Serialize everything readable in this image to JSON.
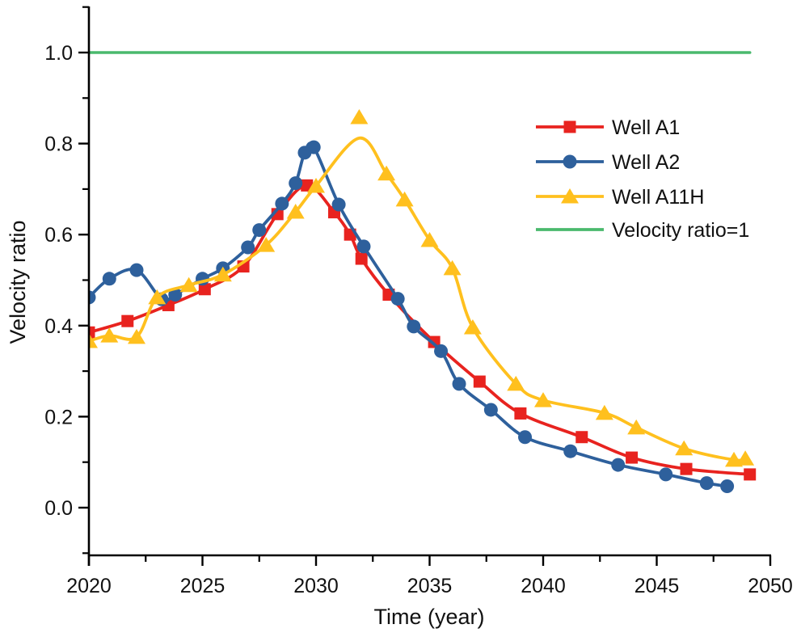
{
  "figure": {
    "background": "#ffffff",
    "axis_color": "#000000",
    "text_color": "#111111"
  },
  "axes": {
    "x": {
      "label": "Time (year)",
      "min": 2020,
      "max": 2050,
      "major_ticks": [
        2020,
        2025,
        2030,
        2035,
        2040,
        2045,
        2050
      ],
      "minor_ticks": [
        2022.5,
        2027.5,
        2032.5,
        2037.5,
        2042.5,
        2047.5
      ],
      "tick_labels": [
        "2020",
        "2025",
        "2030",
        "2035",
        "2040",
        "2045",
        "2050"
      ]
    },
    "y": {
      "label": "Velocity ratio",
      "min": -0.105,
      "max": 1.105,
      "major_ticks": [
        0.0,
        0.2,
        0.4,
        0.6,
        0.8,
        1.0
      ],
      "minor_ticks": [
        -0.1,
        0.1,
        0.3,
        0.5,
        0.7,
        0.9,
        1.1
      ],
      "tick_labels": [
        "0.0",
        "0.2",
        "0.4",
        "0.6",
        "0.8",
        "1.0"
      ]
    }
  },
  "legend": {
    "position": "upper-right-inside",
    "items": [
      {
        "label": "Well A1",
        "color": "#e8231f",
        "marker": "square"
      },
      {
        "label": "Well A2",
        "color": "#2e609c",
        "marker": "circle"
      },
      {
        "label": "Well A11H",
        "color": "#ffc01e",
        "marker": "triangle"
      },
      {
        "label": "Velocity ratio=1",
        "color": "#4ab96d",
        "marker": "none"
      }
    ]
  },
  "chart_data": {
    "type": "line",
    "title": "",
    "xlabel": "Time (year)",
    "ylabel": "Velocity ratio",
    "xlim": [
      2020,
      2050
    ],
    "ylim": [
      -0.105,
      1.105
    ],
    "grid": false,
    "series": [
      {
        "name": "Well A1",
        "color": "#e8231f",
        "marker": "square",
        "points": [
          [
            2020.0,
            0.385
          ],
          [
            2021.7,
            0.41
          ],
          [
            2023.5,
            0.445
          ],
          [
            2025.1,
            0.48
          ],
          [
            2026.8,
            0.53
          ],
          [
            2028.3,
            0.645
          ],
          [
            2029.6,
            0.708
          ],
          [
            2030.8,
            0.649
          ],
          [
            2031.5,
            0.6
          ],
          [
            2032.0,
            0.547
          ],
          [
            2033.2,
            0.468
          ],
          [
            2035.2,
            0.364
          ],
          [
            2037.2,
            0.277
          ],
          [
            2039.0,
            0.207
          ],
          [
            2041.7,
            0.155
          ],
          [
            2043.9,
            0.11
          ],
          [
            2046.3,
            0.085
          ],
          [
            2049.1,
            0.073
          ]
        ]
      },
      {
        "name": "Well A2",
        "color": "#2e609c",
        "marker": "circle",
        "points": [
          [
            2020.0,
            0.462
          ],
          [
            2020.9,
            0.503
          ],
          [
            2022.1,
            0.522
          ],
          [
            2023.2,
            0.458
          ],
          [
            2023.8,
            0.468
          ],
          [
            2025.0,
            0.503
          ],
          [
            2025.9,
            0.526
          ],
          [
            2027.0,
            0.572
          ],
          [
            2027.5,
            0.61
          ],
          [
            2028.5,
            0.668
          ],
          [
            2029.1,
            0.713
          ],
          [
            2029.5,
            0.78
          ],
          [
            2029.9,
            0.792
          ],
          [
            2031.0,
            0.666
          ],
          [
            2032.1,
            0.574
          ],
          [
            2033.6,
            0.459
          ],
          [
            2034.3,
            0.398
          ],
          [
            2035.5,
            0.344
          ],
          [
            2036.3,
            0.272
          ],
          [
            2037.7,
            0.215
          ],
          [
            2039.2,
            0.155
          ],
          [
            2041.2,
            0.124
          ],
          [
            2043.3,
            0.094
          ],
          [
            2045.4,
            0.073
          ],
          [
            2047.2,
            0.054
          ],
          [
            2048.1,
            0.047
          ]
        ]
      },
      {
        "name": "Well A11H",
        "color": "#ffc01e",
        "marker": "triangle",
        "points": [
          [
            2020.0,
            0.366
          ],
          [
            2020.9,
            0.378
          ],
          [
            2022.1,
            0.375
          ],
          [
            2023.0,
            0.462
          ],
          [
            2024.4,
            0.489
          ],
          [
            2025.9,
            0.512
          ],
          [
            2027.8,
            0.577
          ],
          [
            2029.1,
            0.65
          ],
          [
            2030.0,
            0.707
          ],
          [
            2031.9,
            0.858
          ],
          [
            2033.1,
            0.734
          ],
          [
            2033.9,
            0.677
          ],
          [
            2035.0,
            0.588
          ],
          [
            2036.0,
            0.526
          ],
          [
            2036.9,
            0.396
          ],
          [
            2038.8,
            0.272
          ],
          [
            2040.0,
            0.236
          ],
          [
            2042.7,
            0.208
          ],
          [
            2044.1,
            0.176
          ],
          [
            2046.2,
            0.13
          ],
          [
            2048.4,
            0.105
          ],
          [
            2048.9,
            0.108
          ]
        ],
        "line_points": [
          [
            2020.0,
            0.366
          ],
          [
            2020.9,
            0.378
          ],
          [
            2022.1,
            0.375
          ],
          [
            2023.0,
            0.462
          ],
          [
            2024.4,
            0.489
          ],
          [
            2025.9,
            0.512
          ],
          [
            2027.8,
            0.577
          ],
          [
            2029.1,
            0.65
          ],
          [
            2030.0,
            0.707
          ],
          [
            2031.9,
            0.812
          ],
          [
            2033.1,
            0.734
          ],
          [
            2033.9,
            0.677
          ],
          [
            2035.0,
            0.588
          ],
          [
            2036.0,
            0.526
          ],
          [
            2036.9,
            0.396
          ],
          [
            2038.8,
            0.272
          ],
          [
            2040.0,
            0.236
          ],
          [
            2042.7,
            0.208
          ],
          [
            2044.1,
            0.176
          ],
          [
            2046.2,
            0.13
          ],
          [
            2048.4,
            0.105
          ],
          [
            2048.9,
            0.108
          ]
        ]
      },
      {
        "name": "Velocity ratio=1",
        "color": "#4ab96d",
        "marker": "none",
        "points": [
          [
            2020.0,
            1.0
          ],
          [
            2049.1,
            1.0
          ]
        ]
      }
    ]
  }
}
